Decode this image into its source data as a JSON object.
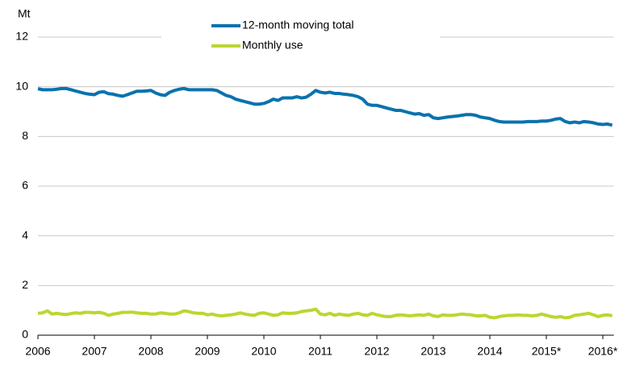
{
  "chart_data": {
    "type": "line",
    "y_label": "Mt",
    "categories": [
      "2006",
      null,
      null,
      null,
      null,
      null,
      null,
      null,
      null,
      null,
      null,
      null,
      "2007",
      null,
      null,
      null,
      null,
      null,
      null,
      null,
      null,
      null,
      null,
      null,
      "2008",
      null,
      null,
      null,
      null,
      null,
      null,
      null,
      null,
      null,
      null,
      null,
      "2009",
      null,
      null,
      null,
      null,
      null,
      null,
      null,
      null,
      null,
      null,
      null,
      "2010",
      null,
      null,
      null,
      null,
      null,
      null,
      null,
      null,
      null,
      null,
      null,
      "2011",
      null,
      null,
      null,
      null,
      null,
      null,
      null,
      null,
      null,
      null,
      null,
      "2012",
      null,
      null,
      null,
      null,
      null,
      null,
      null,
      null,
      null,
      null,
      null,
      "2013",
      null,
      null,
      null,
      null,
      null,
      null,
      null,
      null,
      null,
      null,
      null,
      "2014",
      null,
      null,
      null,
      null,
      null,
      null,
      null,
      null,
      null,
      null,
      null,
      "2015*",
      null,
      null,
      null,
      null,
      null,
      null,
      null,
      null,
      null,
      null,
      null,
      "2016*",
      null,
      null
    ],
    "series": [
      {
        "name": "12-month moving total",
        "color": "#0a72ae",
        "values": [
          9.92,
          9.88,
          9.88,
          9.88,
          9.9,
          9.93,
          9.93,
          9.88,
          9.83,
          9.78,
          9.73,
          9.7,
          9.68,
          9.78,
          9.8,
          9.72,
          9.7,
          9.65,
          9.62,
          9.68,
          9.75,
          9.82,
          9.82,
          9.83,
          9.85,
          9.75,
          9.68,
          9.65,
          9.78,
          9.85,
          9.9,
          9.93,
          9.88,
          9.88,
          9.88,
          9.88,
          9.88,
          9.88,
          9.85,
          9.75,
          9.65,
          9.6,
          9.5,
          9.45,
          9.4,
          9.35,
          9.3,
          9.3,
          9.33,
          9.4,
          9.5,
          9.45,
          9.55,
          9.55,
          9.55,
          9.6,
          9.55,
          9.58,
          9.7,
          9.85,
          9.78,
          9.75,
          9.78,
          9.73,
          9.73,
          9.7,
          9.68,
          9.65,
          9.6,
          9.5,
          9.3,
          9.25,
          9.25,
          9.2,
          9.15,
          9.1,
          9.05,
          9.05,
          9.0,
          8.95,
          8.9,
          8.92,
          8.85,
          8.88,
          8.75,
          8.72,
          8.75,
          8.78,
          8.8,
          8.82,
          8.85,
          8.88,
          8.88,
          8.85,
          8.78,
          8.75,
          8.72,
          8.65,
          8.6,
          8.58,
          8.58,
          8.58,
          8.58,
          8.58,
          8.6,
          8.6,
          8.6,
          8.62,
          8.62,
          8.65,
          8.7,
          8.72,
          8.6,
          8.55,
          8.58,
          8.55,
          8.6,
          8.58,
          8.55,
          8.5,
          8.48,
          8.5,
          8.45
        ]
      },
      {
        "name": "Monthly use",
        "color": "#bcd631",
        "values": [
          0.88,
          0.9,
          0.98,
          0.85,
          0.88,
          0.85,
          0.83,
          0.87,
          0.9,
          0.88,
          0.92,
          0.92,
          0.9,
          0.92,
          0.88,
          0.8,
          0.85,
          0.88,
          0.92,
          0.92,
          0.93,
          0.9,
          0.88,
          0.88,
          0.85,
          0.85,
          0.9,
          0.88,
          0.85,
          0.85,
          0.9,
          0.98,
          0.95,
          0.9,
          0.88,
          0.88,
          0.82,
          0.85,
          0.8,
          0.78,
          0.8,
          0.82,
          0.85,
          0.9,
          0.85,
          0.82,
          0.8,
          0.88,
          0.9,
          0.85,
          0.8,
          0.82,
          0.9,
          0.88,
          0.88,
          0.9,
          0.95,
          0.98,
          1.0,
          1.05,
          0.85,
          0.82,
          0.88,
          0.8,
          0.85,
          0.82,
          0.8,
          0.85,
          0.88,
          0.82,
          0.8,
          0.88,
          0.82,
          0.78,
          0.75,
          0.75,
          0.8,
          0.82,
          0.8,
          0.78,
          0.8,
          0.82,
          0.8,
          0.85,
          0.78,
          0.75,
          0.82,
          0.8,
          0.8,
          0.82,
          0.85,
          0.83,
          0.82,
          0.78,
          0.78,
          0.8,
          0.72,
          0.7,
          0.75,
          0.78,
          0.8,
          0.8,
          0.82,
          0.8,
          0.8,
          0.78,
          0.8,
          0.85,
          0.8,
          0.75,
          0.72,
          0.75,
          0.7,
          0.72,
          0.8,
          0.82,
          0.85,
          0.88,
          0.82,
          0.75,
          0.8,
          0.82,
          0.78
        ]
      }
    ],
    "ylim": [
      0,
      12
    ],
    "yticks": [
      0,
      2,
      4,
      6,
      8,
      10,
      12
    ],
    "grid": true,
    "legend": "top"
  }
}
